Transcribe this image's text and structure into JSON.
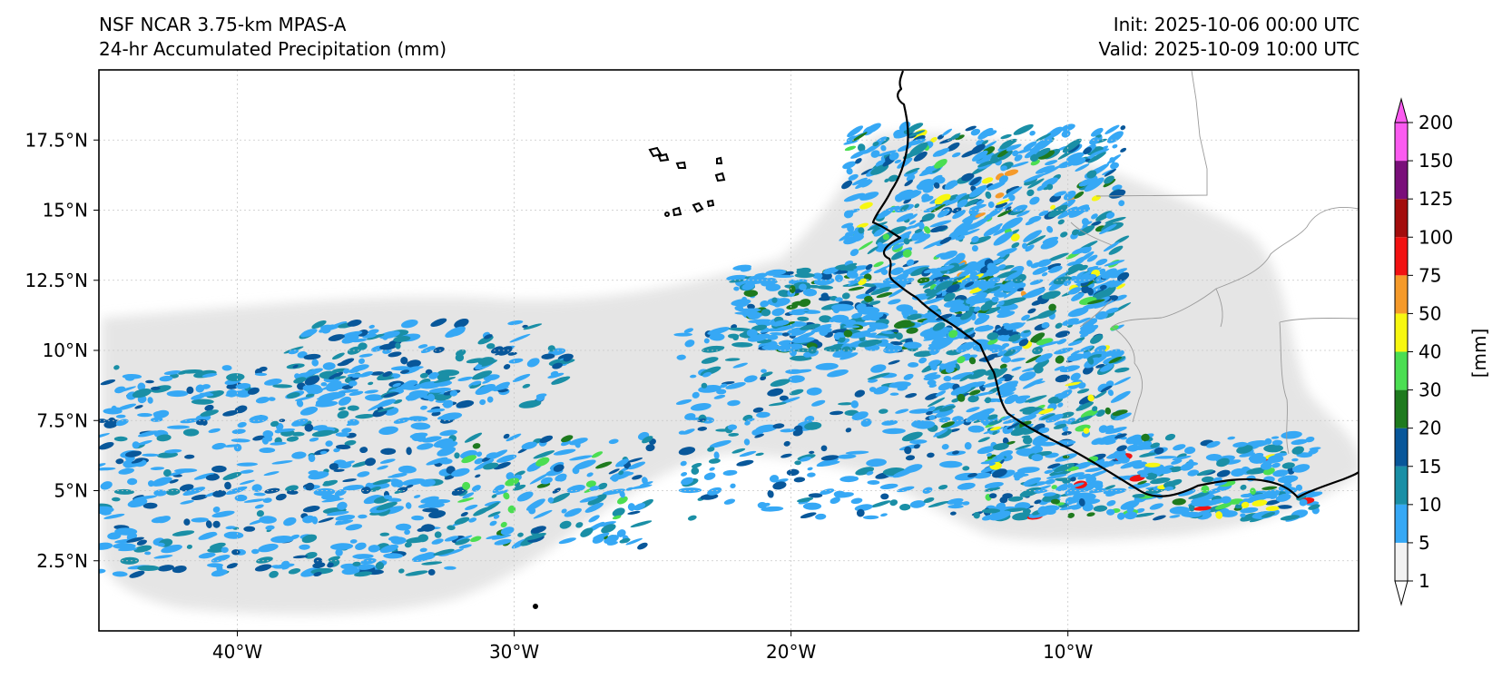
{
  "titles": {
    "left_line1": "NSF NCAR 3.75-km MPAS-A",
    "left_line2": "24-hr Accumulated Precipitation (mm)",
    "right_line1": "Init: 2025-10-06 00:00 UTC",
    "right_line2": "Valid: 2025-10-09 10:00 UTC"
  },
  "map": {
    "lon_range": [
      -45,
      0.5
    ],
    "lat_range": [
      0,
      20
    ],
    "lon_ticks": [
      {
        "value": -40,
        "label": "40°W"
      },
      {
        "value": -30,
        "label": "30°W"
      },
      {
        "value": -20,
        "label": "20°W"
      },
      {
        "value": -10,
        "label": "10°W"
      }
    ],
    "lat_ticks": [
      {
        "value": 2.5,
        "label": "2.5°N"
      },
      {
        "value": 5,
        "label": "5°N"
      },
      {
        "value": 7.5,
        "label": "7.5°N"
      },
      {
        "value": 10,
        "label": "10°N"
      },
      {
        "value": 12.5,
        "label": "12.5°N"
      },
      {
        "value": 15,
        "label": "15°N"
      },
      {
        "value": 17.5,
        "label": "17.5°N"
      }
    ],
    "gridlines": true
  },
  "colorbar": {
    "label": "[mm]",
    "levels": [
      "1",
      "5",
      "10",
      "15",
      "20",
      "30",
      "40",
      "50",
      "75",
      "100",
      "125",
      "150",
      "200"
    ],
    "colors": [
      "#f2f2f2",
      "#36a8f5",
      "#1a8fa6",
      "#08579a",
      "#1e7a1e",
      "#4bde52",
      "#f7f710",
      "#f59a2a",
      "#f21212",
      "#a30d0d",
      "#7a0f7a",
      "#fb5bf0"
    ],
    "extend": "both"
  }
}
